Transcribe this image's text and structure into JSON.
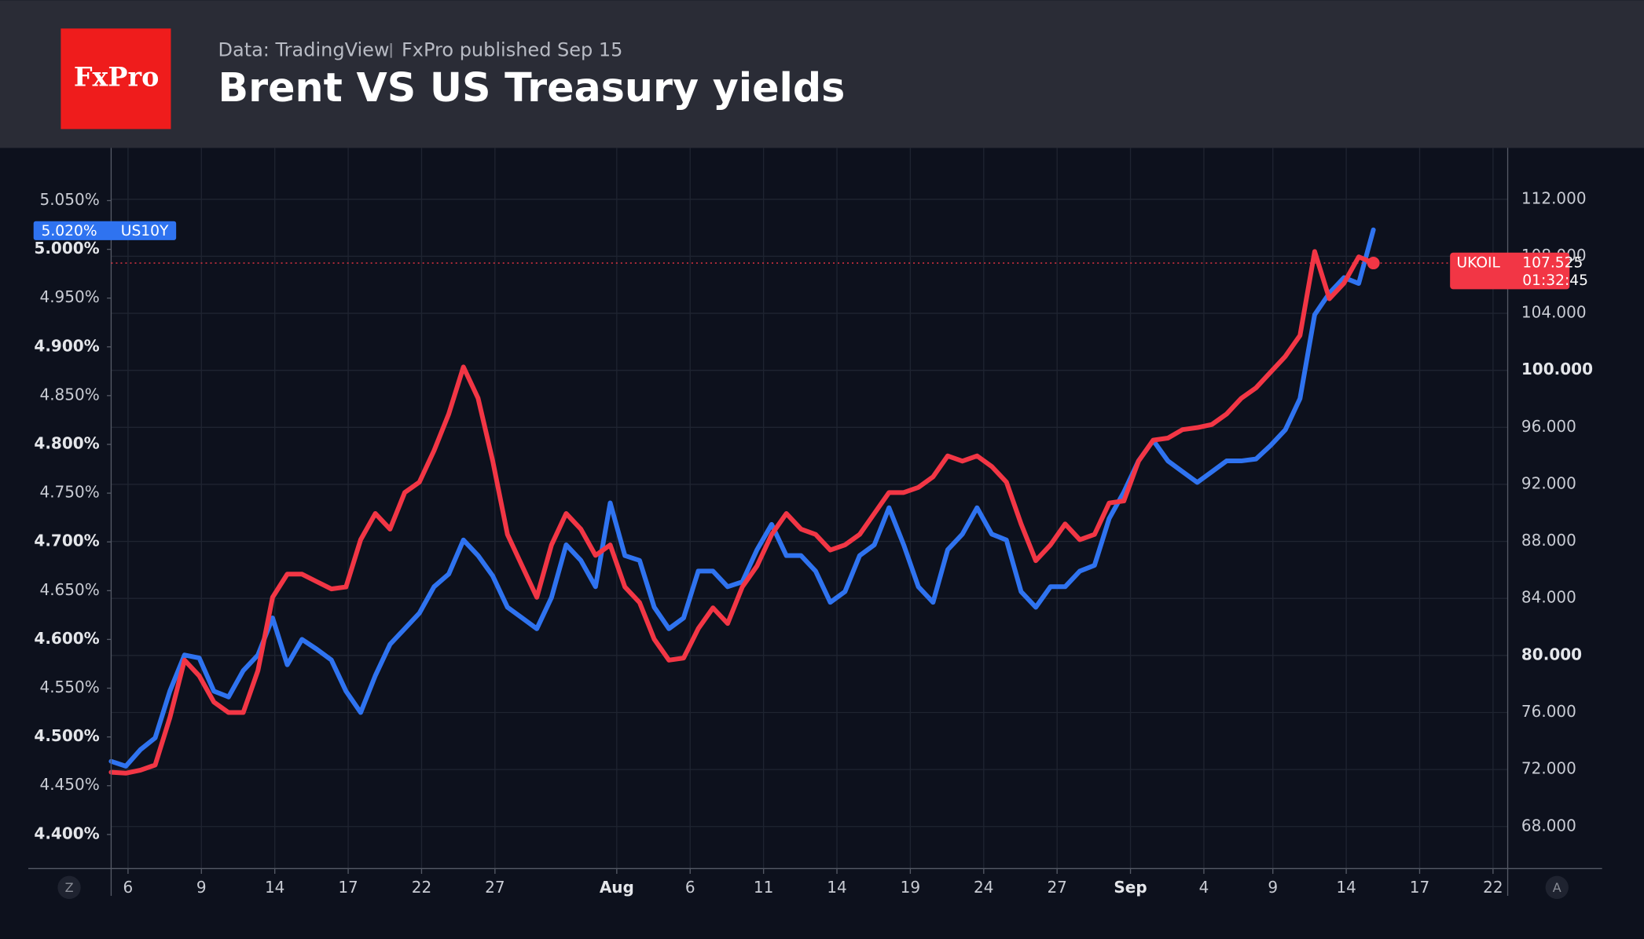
{
  "chart_data": {
    "type": "line",
    "logo": "FxPro",
    "source": "Data: TradingView",
    "subtitle": "FxPro published Sep 15",
    "title": "Brent VS US Treasury yields",
    "buttons": [
      "Z",
      "A"
    ],
    "xlim": [
      0,
      190.3
    ],
    "xticks": [
      {
        "value": 2.3,
        "label": "6"
      },
      {
        "value": 12.3,
        "label": "9"
      },
      {
        "value": 22.3,
        "label": "14"
      },
      {
        "value": 32.3,
        "label": "17"
      },
      {
        "value": 42.3,
        "label": "22"
      },
      {
        "value": 52.3,
        "label": "27"
      },
      {
        "value": 68.9,
        "label": "Aug",
        "bold": true
      },
      {
        "value": 78.9,
        "label": "6"
      },
      {
        "value": 88.9,
        "label": "11"
      },
      {
        "value": 98.9,
        "label": "14"
      },
      {
        "value": 108.9,
        "label": "19"
      },
      {
        "value": 118.9,
        "label": "24"
      },
      {
        "value": 128.9,
        "label": "27"
      },
      {
        "value": 138.9,
        "label": "Sep",
        "bold": true
      },
      {
        "value": 148.9,
        "label": "4"
      },
      {
        "value": 158.3,
        "label": "9"
      },
      {
        "value": 168.3,
        "label": "14"
      },
      {
        "value": 178.3,
        "label": "17"
      },
      {
        "value": 188.3,
        "label": "22"
      }
    ],
    "ylim": [
      4.365,
      5.104
    ],
    "yticks": [
      {
        "value": 5.05,
        "label": "5.050%"
      },
      {
        "value": 5.0,
        "label": "5.000%",
        "bold": true
      },
      {
        "value": 4.95,
        "label": "4.950%"
      },
      {
        "value": 4.9,
        "label": "4.900%",
        "bold": true
      },
      {
        "value": 4.85,
        "label": "4.850%"
      },
      {
        "value": 4.8,
        "label": "4.800%",
        "bold": true
      },
      {
        "value": 4.75,
        "label": "4.750%"
      },
      {
        "value": 4.7,
        "label": "4.700%",
        "bold": true
      },
      {
        "value": 4.65,
        "label": "4.650%"
      },
      {
        "value": 4.6,
        "label": "4.600%",
        "bold": true
      },
      {
        "value": 4.55,
        "label": "4.550%"
      },
      {
        "value": 4.5,
        "label": "4.500%",
        "bold": true
      },
      {
        "value": 4.45,
        "label": "4.450%"
      },
      {
        "value": 4.4,
        "label": "4.400%",
        "bold": true
      }
    ],
    "y2lim": [
      65.05,
      115.6
    ],
    "y2ticks": [
      {
        "value": 112,
        "label": "112.000"
      },
      {
        "value": 108,
        "label": "108.000"
      },
      {
        "value": 104,
        "label": "104.000"
      },
      {
        "value": 100,
        "label": "100.000",
        "bold": true
      },
      {
        "value": 96,
        "label": "96.000"
      },
      {
        "value": 92,
        "label": "92.000"
      },
      {
        "value": 88,
        "label": "88.000"
      },
      {
        "value": 84,
        "label": "84.000"
      },
      {
        "value": 80,
        "label": "80.000",
        "bold": true
      },
      {
        "value": 76,
        "label": "76.000"
      },
      {
        "value": 72,
        "label": "72.000"
      },
      {
        "value": 68,
        "label": "68.000"
      }
    ],
    "grid": true,
    "countdown": "01:32:45",
    "x": [
      0,
      2,
      4,
      6,
      8,
      10,
      12,
      14,
      16,
      18,
      20,
      22,
      24,
      26,
      28,
      30,
      32,
      34,
      36,
      38,
      40,
      42,
      44,
      46,
      48,
      50,
      52,
      54,
      56,
      58,
      60,
      62,
      64,
      66,
      68,
      70,
      72,
      74,
      76,
      78,
      80,
      82,
      84,
      86,
      88,
      90,
      92,
      94,
      96,
      98,
      100,
      102,
      104,
      106,
      108,
      110,
      112,
      114,
      116,
      118,
      120,
      122,
      124,
      126,
      128,
      130,
      132,
      134,
      136,
      138,
      140,
      142,
      144,
      146,
      148,
      150,
      152,
      154,
      156,
      158,
      160,
      162,
      164,
      166,
      168,
      170,
      172
    ],
    "series": [
      {
        "name": "US10Y",
        "color": "#2f73f0",
        "axis": "y",
        "last_label": "5.020%",
        "values": [
          4.475,
          4.47,
          4.487,
          4.499,
          4.547,
          4.584,
          4.581,
          4.547,
          4.541,
          4.568,
          4.584,
          4.622,
          4.574,
          4.6,
          4.59,
          4.579,
          4.547,
          4.525,
          4.563,
          4.595,
          4.611,
          4.627,
          4.654,
          4.667,
          4.702,
          4.686,
          4.665,
          4.633,
          4.622,
          4.611,
          4.643,
          4.697,
          4.681,
          4.654,
          4.74,
          4.686,
          4.681,
          4.633,
          4.611,
          4.622,
          4.67,
          4.67,
          4.654,
          4.659,
          4.692,
          4.718,
          4.686,
          4.686,
          4.67,
          4.638,
          4.649,
          4.686,
          4.697,
          4.735,
          4.697,
          4.654,
          4.638,
          4.692,
          4.708,
          4.735,
          4.708,
          4.702,
          4.649,
          4.633,
          4.654,
          4.654,
          4.67,
          4.676,
          4.724,
          4.751,
          4.783,
          4.804,
          4.783,
          4.772,
          4.761,
          4.772,
          4.783,
          4.783,
          4.785,
          4.799,
          4.815,
          4.847,
          4.933,
          4.955,
          4.971,
          4.965,
          5.02
        ]
      },
      {
        "name": "UKOIL",
        "color": "#f23645",
        "axis": "y2",
        "last_label": "107.525",
        "values": [
          71.81,
          71.74,
          71.96,
          72.32,
          75.63,
          79.67,
          78.57,
          76.73,
          76.0,
          76.0,
          78.94,
          84.08,
          85.7,
          85.7,
          85.18,
          84.67,
          84.81,
          88.12,
          89.96,
          88.86,
          91.43,
          92.16,
          94.37,
          96.94,
          100.24,
          98.04,
          93.63,
          88.49,
          86.28,
          84.08,
          87.75,
          89.96,
          88.86,
          87.02,
          87.75,
          84.81,
          83.71,
          81.14,
          79.67,
          79.82,
          81.88,
          83.34,
          82.24,
          84.81,
          86.28,
          88.49,
          89.96,
          88.86,
          88.49,
          87.39,
          87.75,
          88.49,
          89.96,
          91.43,
          91.43,
          91.79,
          92.53,
          94.0,
          93.63,
          94.0,
          93.26,
          92.16,
          89.22,
          86.65,
          87.75,
          89.22,
          88.12,
          88.49,
          90.69,
          90.84,
          93.63,
          95.1,
          95.25,
          95.84,
          95.98,
          96.2,
          96.94,
          98.04,
          98.77,
          99.88,
          100.98,
          102.45,
          108.33,
          105.02,
          106.12,
          107.96,
          107.525
        ]
      }
    ]
  }
}
